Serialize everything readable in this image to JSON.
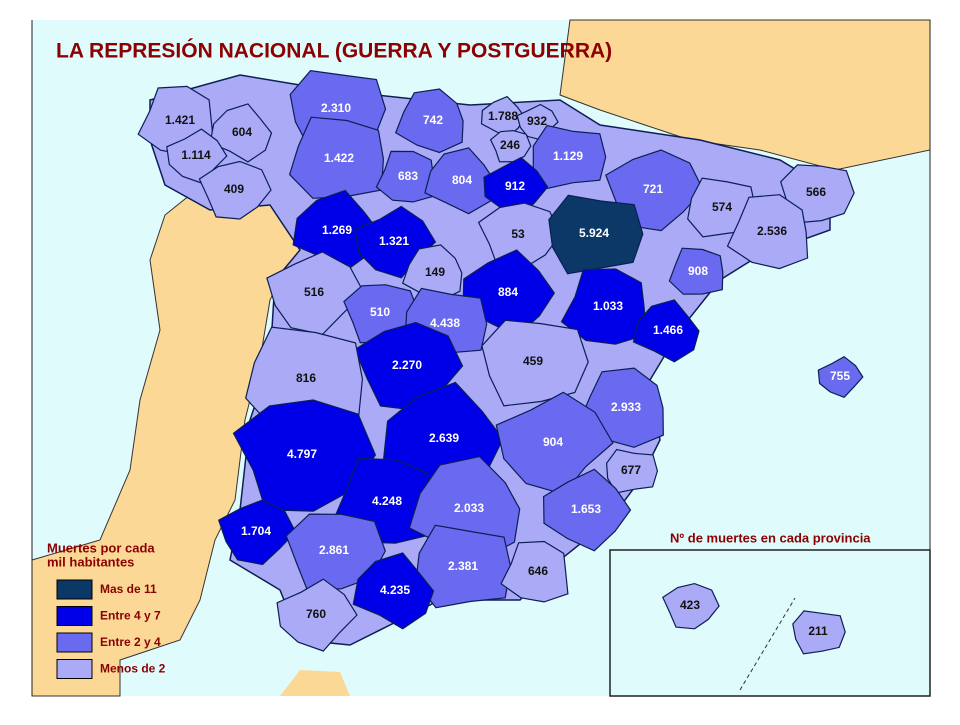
{
  "title": "LA REPRESIÓN NACIONAL (GUERRA Y POSTGUERRA)",
  "legend": {
    "title": [
      "Muertes por cada",
      "mil habitantes"
    ],
    "items": [
      {
        "label": "Mas de 11",
        "color": "#0b3866"
      },
      {
        "label": "Entre 4 y 7",
        "color": "#0000e8"
      },
      {
        "label": "Entre 2 y 4",
        "color": "#6a6af0"
      },
      {
        "label": "Menos de 2",
        "color": "#aaaaf6"
      }
    ]
  },
  "note": "Nº de muertes en cada provincia",
  "provinces": [
    {
      "label": "1.421",
      "level": 3
    },
    {
      "label": "604",
      "level": 3
    },
    {
      "label": "1.114",
      "level": 3
    },
    {
      "label": "409",
      "level": 3
    },
    {
      "label": "2.310",
      "level": 2
    },
    {
      "label": "1.422",
      "level": 2
    },
    {
      "label": "742",
      "level": 2
    },
    {
      "label": "1.788",
      "level": 3
    },
    {
      "label": "932",
      "level": 3
    },
    {
      "label": "246",
      "level": 3
    },
    {
      "label": "1.129",
      "level": 2
    },
    {
      "label": "683",
      "level": 2
    },
    {
      "label": "804",
      "level": 2
    },
    {
      "label": "912",
      "level": 1
    },
    {
      "label": "721",
      "level": 2
    },
    {
      "label": "566",
      "level": 3
    },
    {
      "label": "574",
      "level": 3
    },
    {
      "label": "2.536",
      "level": 3
    },
    {
      "label": "1.269",
      "level": 1
    },
    {
      "label": "1.321",
      "level": 1
    },
    {
      "label": "53",
      "level": 3
    },
    {
      "label": "5.924",
      "level": 0
    },
    {
      "label": "908",
      "level": 2
    },
    {
      "label": "149",
      "level": 3
    },
    {
      "label": "884",
      "level": 1
    },
    {
      "label": "516",
      "level": 3
    },
    {
      "label": "510",
      "level": 2
    },
    {
      "label": "4.438",
      "level": 2
    },
    {
      "label": "1.033",
      "level": 1
    },
    {
      "label": "1.466",
      "level": 1
    },
    {
      "label": "755",
      "level": 2
    },
    {
      "label": "2.270",
      "level": 1
    },
    {
      "label": "459",
      "level": 3
    },
    {
      "label": "816",
      "level": 3
    },
    {
      "label": "2.933",
      "level": 2
    },
    {
      "label": "2.639",
      "level": 1
    },
    {
      "label": "904",
      "level": 2
    },
    {
      "label": "4.797",
      "level": 1
    },
    {
      "label": "677",
      "level": 3
    },
    {
      "label": "4.248",
      "level": 1
    },
    {
      "label": "2.033",
      "level": 2
    },
    {
      "label": "1.653",
      "level": 2
    },
    {
      "label": "1.704",
      "level": 1
    },
    {
      "label": "2.861",
      "level": 2
    },
    {
      "label": "2.381",
      "level": 2
    },
    {
      "label": "646",
      "level": 3
    },
    {
      "label": "4.235",
      "level": 1
    },
    {
      "label": "760",
      "level": 3
    },
    {
      "label": "423",
      "level": 3
    },
    {
      "label": "211",
      "level": 3
    }
  ]
}
